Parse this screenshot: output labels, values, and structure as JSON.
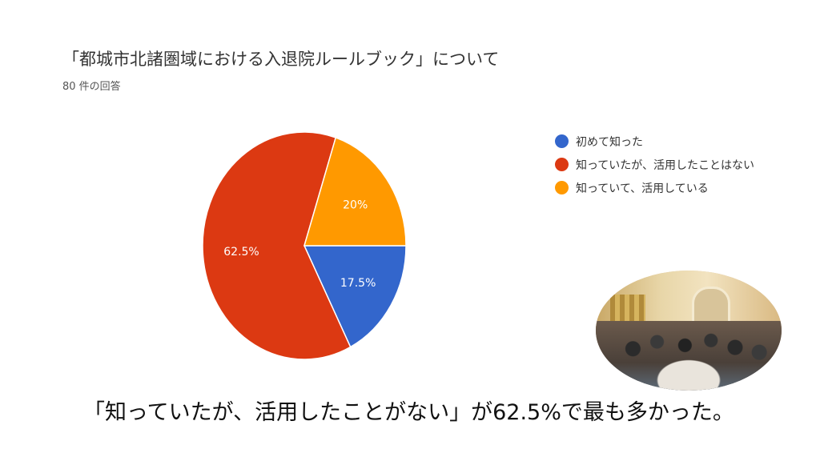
{
  "header": {
    "title": "「都城市北諸圏域における入退院ルールブック」について",
    "subtitle": "80 件の回答"
  },
  "chart_data": {
    "type": "pie",
    "title": "「都城市北諸圏域における入退院ルールブック」について",
    "slices": [
      {
        "label": "初めて知った",
        "value": 17.5,
        "display": "17.5%",
        "color": "#3366cc"
      },
      {
        "label": "知っていたが、活用したことはない",
        "value": 62.5,
        "display": "62.5%",
        "color": "#dc3912"
      },
      {
        "label": "知っていて、活用している",
        "value": 20,
        "display": "20%",
        "color": "#ff9900"
      }
    ],
    "legend_position": "right"
  },
  "caption": "「知っていたが、活用したことがない」が62.5%で最も多かった。"
}
